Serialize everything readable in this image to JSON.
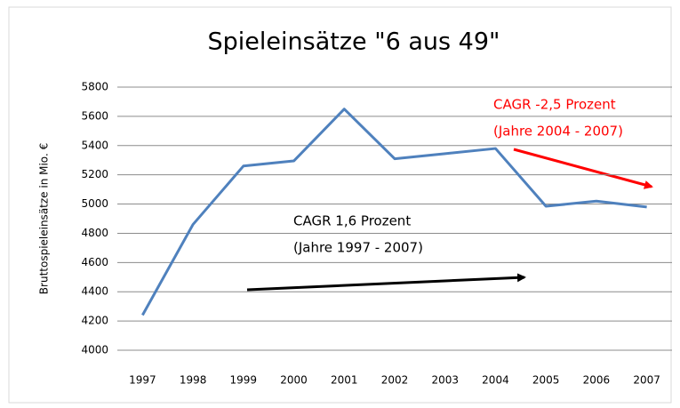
{
  "chart_data": {
    "type": "line",
    "title": "Spieleinsätze \"6 aus 49\"",
    "y_label": "Bruttospieleinsätze in Mio. €",
    "categories": [
      "1997",
      "1998",
      "1999",
      "2000",
      "2001",
      "2002",
      "2003",
      "2004",
      "2005",
      "2006",
      "2007"
    ],
    "series": [
      {
        "name": "Spieleinsätze",
        "color": "#4f81bd",
        "values": [
          4240,
          4860,
          5260,
          5295,
          5650,
          5310,
          5345,
          5380,
          4985,
          5020,
          4980
        ]
      }
    ],
    "ylim": [
      4000,
      5800
    ],
    "yticks": [
      4000,
      4200,
      4400,
      4600,
      4800,
      5000,
      5200,
      5400,
      5600,
      5800
    ],
    "grid": true,
    "annotations": [
      {
        "lines": [
          "CAGR -2,5 Prozent",
          "(Jahre 2004 - 2007)"
        ],
        "color": "#ff0000"
      },
      {
        "lines": [
          "CAGR 1,6 Prozent",
          "(Jahre 1997 - 2007)"
        ],
        "color": "#000000"
      }
    ]
  }
}
